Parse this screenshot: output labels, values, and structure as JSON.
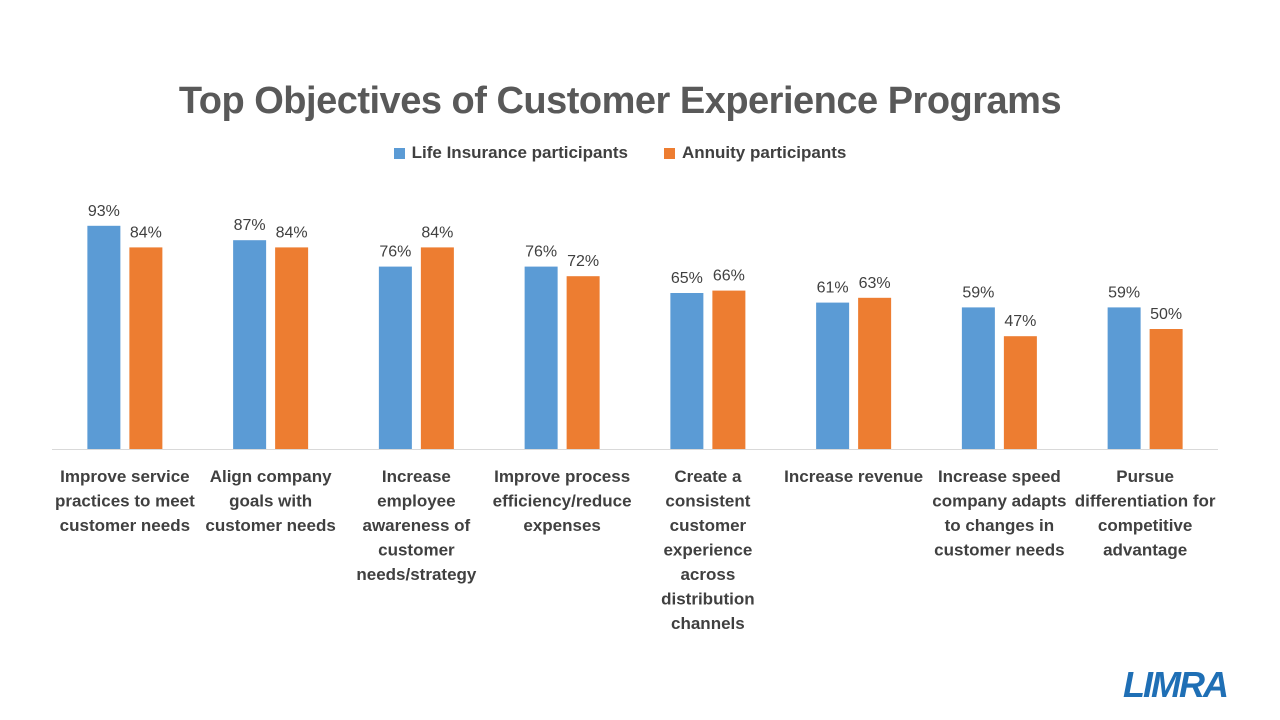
{
  "title": "Top Objectives of Customer Experience Programs",
  "colors": {
    "life": "#5B9BD5",
    "annuity": "#ED7D31",
    "axis": "#D9D9D9",
    "label": "#404040"
  },
  "logo": {
    "text": "LIMRA",
    "color": "#1F6FB5"
  },
  "chart_data": {
    "type": "bar",
    "title": "Top Objectives of Customer Experience Programs",
    "xlabel": "",
    "ylabel": "",
    "ylim": [
      0,
      100
    ],
    "grid": false,
    "legend": "top-center",
    "categories": [
      "Improve service practices to meet customer needs",
      "Align company goals with customer needs",
      "Increase employee awareness of customer needs/strategy",
      "Improve process efficiency/reduce expenses",
      "Create a consistent customer experience across distribution channels",
      "Increase revenue",
      "Increase speed company adapts to changes in customer needs",
      "Pursue differentiation for competitive advantage"
    ],
    "category_lines": [
      [
        "Improve service",
        "practices to meet",
        "customer needs"
      ],
      [
        "Align company",
        "goals with",
        "customer needs"
      ],
      [
        "Increase",
        "employee",
        "awareness of",
        "customer",
        "needs/strategy"
      ],
      [
        "Improve process",
        "efficiency/reduce",
        "expenses"
      ],
      [
        "Create a",
        "consistent",
        "customer",
        "experience",
        "across",
        "distribution",
        "channels"
      ],
      [
        "Increase revenue"
      ],
      [
        "Increase speed",
        "company adapts",
        "to changes in",
        "customer needs"
      ],
      [
        "Pursue",
        "differentiation for",
        "competitive",
        "advantage"
      ]
    ],
    "series": [
      {
        "name": "Life Insurance participants",
        "values": [
          93,
          87,
          76,
          76,
          65,
          61,
          59,
          59
        ]
      },
      {
        "name": "Annuity participants",
        "values": [
          84,
          84,
          84,
          72,
          66,
          63,
          47,
          50
        ]
      }
    ]
  }
}
